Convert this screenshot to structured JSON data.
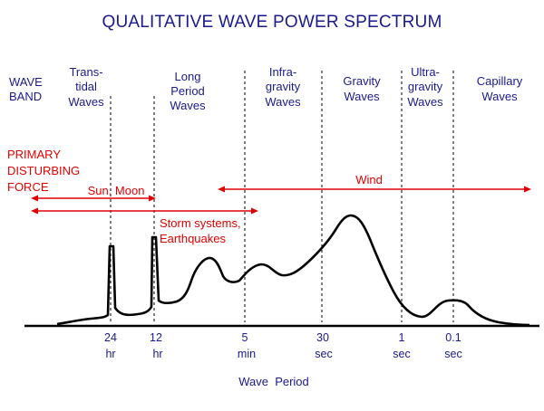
{
  "title": "QUALITATIVE WAVE POWER SPECTRUM",
  "wave_band_label": [
    "WAVE",
    "BAND"
  ],
  "bands": [
    {
      "id": "transtidal",
      "lines": [
        "Trans-",
        "tidal",
        "Waves"
      ]
    },
    {
      "id": "long-period",
      "lines": [
        "Long",
        "Period",
        "Waves"
      ]
    },
    {
      "id": "infragravity",
      "lines": [
        "Infra-",
        "gravity",
        "Waves"
      ]
    },
    {
      "id": "gravity",
      "lines": [
        "Gravity",
        "Waves"
      ]
    },
    {
      "id": "ultragravity",
      "lines": [
        "Ultra-",
        "gravity",
        "Waves"
      ]
    },
    {
      "id": "capillary",
      "lines": [
        "Capillary",
        "Waves"
      ]
    }
  ],
  "primary_force_label": [
    "PRIMARY",
    "DISTURBING",
    "FORCE"
  ],
  "forces": [
    {
      "id": "sun-moon",
      "lines": [
        "Sun, Moon"
      ]
    },
    {
      "id": "wind",
      "lines": [
        "Wind"
      ]
    },
    {
      "id": "storm",
      "lines": [
        "Storm systems,",
        "Earthquakes"
      ]
    }
  ],
  "ticks": [
    {
      "value": "24",
      "unit": "hr"
    },
    {
      "value": "12",
      "unit": "hr"
    },
    {
      "value": "5",
      "unit": "min"
    },
    {
      "value": "30",
      "unit": "sec"
    },
    {
      "value": "1",
      "unit": "sec"
    },
    {
      "value": "0.1",
      "unit": "sec"
    }
  ],
  "xlabel": "Wave  Period",
  "colors": {
    "text": "#1a1a8c",
    "force": "#e00000",
    "curve": "#000000"
  }
}
